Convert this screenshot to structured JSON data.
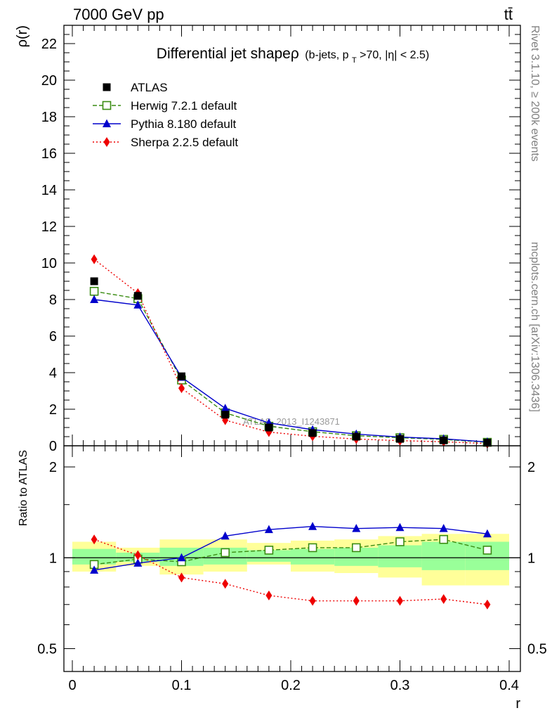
{
  "header": {
    "energy_label": "7000 GeV pp",
    "process_label": "tt̄"
  },
  "side_labels": {
    "rivet": "Rivet 3.1.10, ≥ 200k events",
    "mcplots": "mcplots.cern.ch [arXiv:1306.3436]"
  },
  "colors": {
    "data": "#000000",
    "herwig": "#3a8c12",
    "pythia": "#0000cc",
    "sherpa": "#ee0000",
    "band_outer": "#ffff99",
    "band_inner": "#99ff99"
  },
  "chart_data": [
    {
      "type": "line",
      "title_main": "Differential jet shapeρ",
      "title_sub": "(b-jets, p_T>70, |η| < 2.5)",
      "title_sub_parts": {
        "a": "(b-jets, p",
        "sub": "T",
        "b": ">70, |η| < 2.5)"
      },
      "ylabel": "ρ(r)",
      "watermark": "ATLAS_2013_I1243871",
      "xlim": [
        0,
        0.4
      ],
      "ylim": [
        0,
        23
      ],
      "yticks": [
        0,
        2,
        4,
        6,
        8,
        10,
        12,
        14,
        16,
        18,
        20,
        22
      ],
      "ytick_labels": [
        "0",
        "2",
        "4",
        "6",
        "8",
        "10",
        "12",
        "14",
        "16",
        "18",
        "20",
        "22"
      ],
      "x": [
        0.02,
        0.06,
        0.1,
        0.14,
        0.18,
        0.22,
        0.26,
        0.3,
        0.34,
        0.38
      ],
      "legend": [
        {
          "key": "data",
          "label": "ATLAS"
        },
        {
          "key": "herwig",
          "label": "Herwig 7.2.1 default"
        },
        {
          "key": "pythia",
          "label": "Pythia 8.180 default"
        },
        {
          "key": "sherpa",
          "label": "Sherpa 2.2.5 default"
        }
      ],
      "data": {
        "name": "ATLAS",
        "values": [
          9.0,
          8.2,
          3.8,
          1.7,
          1.0,
          0.7,
          0.5,
          0.38,
          0.3,
          0.17
        ]
      },
      "series": [
        {
          "key": "herwig",
          "name": "Herwig 7.2.1 default",
          "values": [
            8.45,
            8.05,
            3.6,
            1.8,
            1.07,
            0.77,
            0.55,
            0.44,
            0.35,
            0.19
          ]
        },
        {
          "key": "pythia",
          "name": "Pythia 8.180 default",
          "values": [
            8.0,
            7.7,
            3.75,
            2.05,
            1.25,
            0.88,
            0.64,
            0.48,
            0.38,
            0.21
          ]
        },
        {
          "key": "sherpa",
          "name": "Sherpa 2.2.5 default",
          "values": [
            10.2,
            8.35,
            3.15,
            1.4,
            0.75,
            0.52,
            0.37,
            0.28,
            0.22,
            0.12
          ]
        }
      ]
    },
    {
      "type": "line",
      "ylabel": "Ratio to ATLAS",
      "yscale": "log",
      "ylim": [
        0.42,
        2.35
      ],
      "ytick_labels": [
        "0.5",
        "1",
        "2"
      ],
      "yticks": [
        0.5,
        1,
        2
      ],
      "xlim": [
        0,
        0.4
      ],
      "xlabel": "r",
      "xticks": [
        0,
        0.1,
        0.2,
        0.3,
        0.4
      ],
      "xtick_labels": [
        "0",
        "0.1",
        "0.2",
        "0.3",
        "0.4"
      ],
      "x": [
        0.02,
        0.06,
        0.1,
        0.14,
        0.18,
        0.22,
        0.26,
        0.3,
        0.34,
        0.38
      ],
      "bins": [
        [
          0.0,
          0.04
        ],
        [
          0.04,
          0.08
        ],
        [
          0.08,
          0.12
        ],
        [
          0.12,
          0.16
        ],
        [
          0.16,
          0.2
        ],
        [
          0.2,
          0.24
        ],
        [
          0.24,
          0.28
        ],
        [
          0.28,
          0.32
        ],
        [
          0.32,
          0.36
        ],
        [
          0.36,
          0.4
        ]
      ],
      "band_outer": [
        [
          0.9,
          1.13
        ],
        [
          0.94,
          1.08
        ],
        [
          0.88,
          1.15
        ],
        [
          0.9,
          1.15
        ],
        [
          0.95,
          1.12
        ],
        [
          0.9,
          1.14
        ],
        [
          0.89,
          1.15
        ],
        [
          0.86,
          1.18
        ],
        [
          0.81,
          1.2
        ],
        [
          0.81,
          1.2
        ]
      ],
      "band_inner": [
        [
          0.95,
          1.07
        ],
        [
          0.97,
          1.04
        ],
        [
          0.94,
          1.08
        ],
        [
          0.95,
          1.08
        ],
        [
          0.97,
          1.06
        ],
        [
          0.95,
          1.07
        ],
        [
          0.94,
          1.08
        ],
        [
          0.93,
          1.1
        ],
        [
          0.91,
          1.13
        ],
        [
          0.91,
          1.13
        ]
      ],
      "series": [
        {
          "key": "herwig",
          "name": "Herwig 7.2.1 default",
          "values": [
            0.95,
            0.99,
            0.97,
            1.04,
            1.06,
            1.08,
            1.08,
            1.13,
            1.15,
            1.06
          ]
        },
        {
          "key": "pythia",
          "name": "Pythia 8.180 default",
          "values": [
            0.91,
            0.96,
            1.0,
            1.18,
            1.24,
            1.27,
            1.25,
            1.26,
            1.25,
            1.2
          ]
        },
        {
          "key": "sherpa",
          "name": "Sherpa 2.2.5 default",
          "values": [
            1.15,
            1.02,
            0.86,
            0.82,
            0.75,
            0.72,
            0.72,
            0.72,
            0.73,
            0.7
          ]
        }
      ]
    }
  ]
}
